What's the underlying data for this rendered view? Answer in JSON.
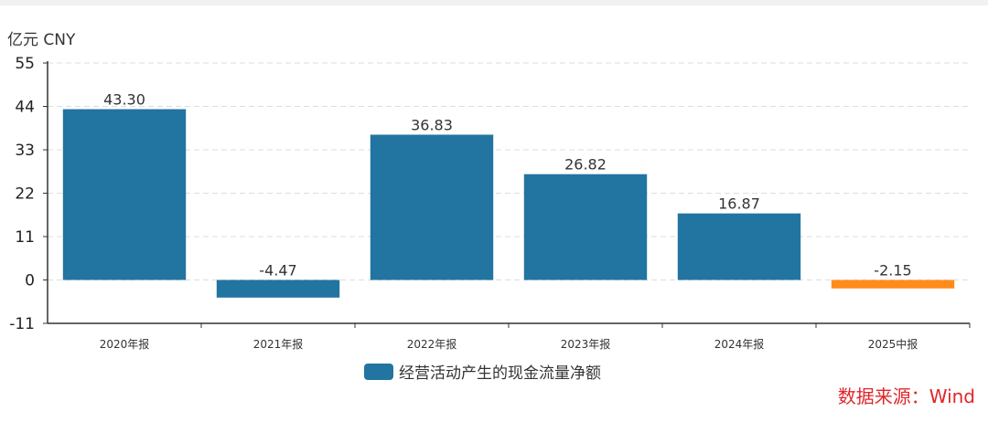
{
  "chart_data": {
    "type": "bar",
    "unit": "亿元  CNY",
    "categories": [
      "2020年报",
      "2021年报",
      "2022年报",
      "2023年报",
      "2024年报",
      "2025中报"
    ],
    "series": [
      {
        "name": "经营活动产生的现金流量净额",
        "values": [
          43.3,
          -4.47,
          36.83,
          26.82,
          16.87,
          -2.15
        ],
        "labels": [
          "43.30",
          "-4.47",
          "36.83",
          "26.82",
          "16.87",
          "-2.15"
        ],
        "colors": [
          "#2274a1",
          "#2274a1",
          "#2274a1",
          "#2274a1",
          "#2274a1",
          "#ff8c1a"
        ]
      }
    ],
    "yticks": [
      "55",
      "44",
      "33",
      "22",
      "11",
      "0",
      "-11"
    ],
    "ylim": [
      -11,
      55
    ],
    "grid": true,
    "legend": "bottom-center"
  },
  "colors": {
    "series": "#2274a1",
    "highlight": "#ff8c1a",
    "source": "#e0262a",
    "grid": "#dddddd",
    "axis": "#333333"
  },
  "legend_label": "经营活动产生的现金流量净额",
  "source": "数据来源：Wind"
}
